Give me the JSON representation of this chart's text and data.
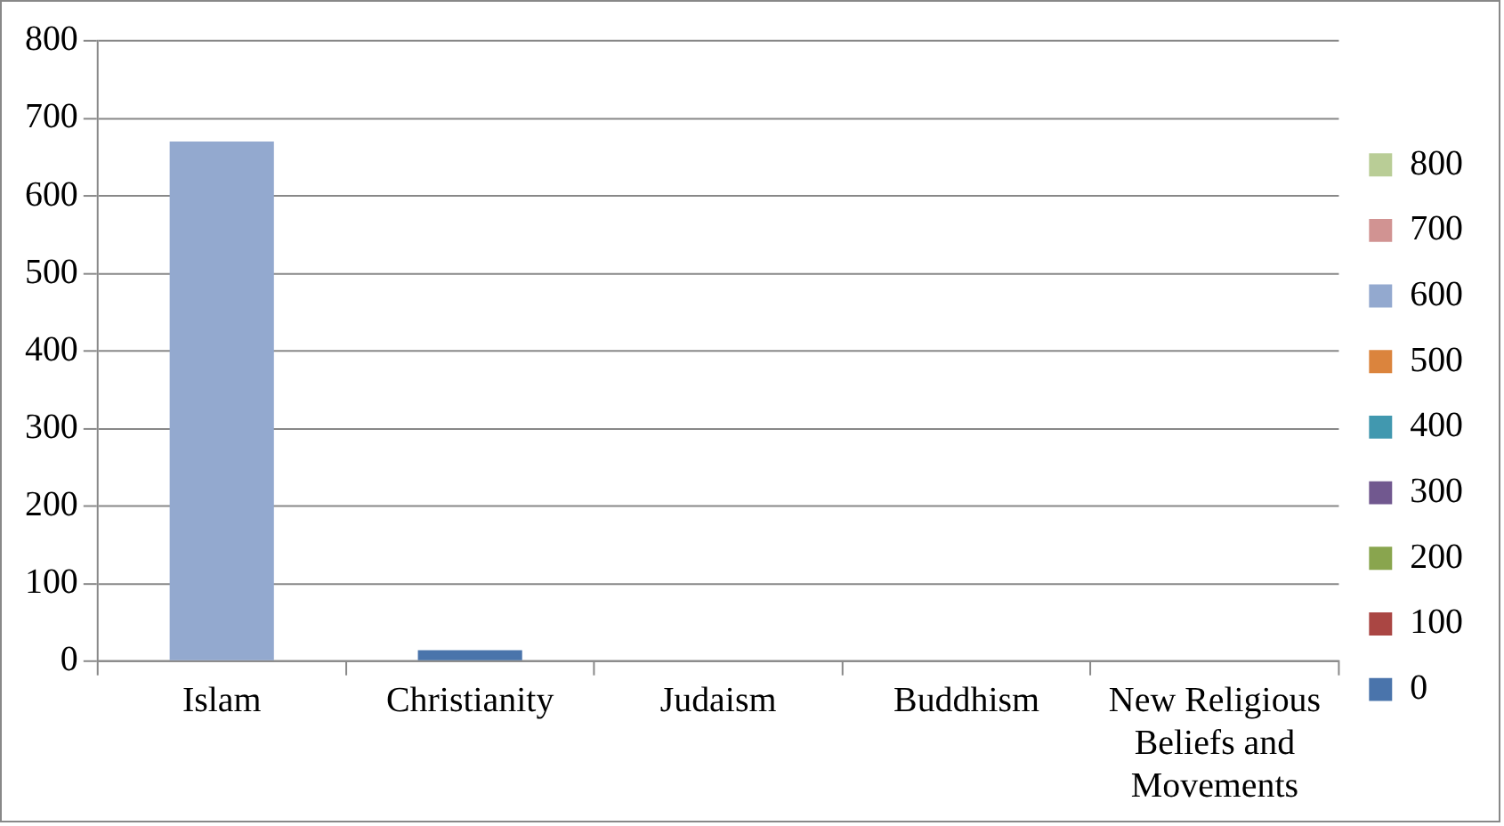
{
  "chart_data": {
    "type": "bar",
    "stacked": true,
    "categories": [
      "Islam",
      "Christianity",
      "Judaism",
      "Buddhism",
      "New Religious Beliefs and Movements"
    ],
    "series": [
      {
        "name": "0",
        "color": "#4a74ab",
        "values": [
          null,
          14,
          null,
          null,
          null
        ]
      },
      {
        "name": "100",
        "color": "#aa4643",
        "values": [
          null,
          null,
          null,
          null,
          null
        ]
      },
      {
        "name": "200",
        "color": "#89a54e",
        "values": [
          null,
          null,
          null,
          null,
          null
        ]
      },
      {
        "name": "300",
        "color": "#71588f",
        "values": [
          null,
          null,
          null,
          null,
          null
        ]
      },
      {
        "name": "400",
        "color": "#4198af",
        "values": [
          null,
          null,
          null,
          null,
          null
        ]
      },
      {
        "name": "500",
        "color": "#db843d",
        "values": [
          null,
          null,
          null,
          null,
          null
        ]
      },
      {
        "name": "600",
        "color": "#93a9cf",
        "values": [
          670,
          null,
          null,
          null,
          null
        ]
      },
      {
        "name": "700",
        "color": "#d19392",
        "values": [
          null,
          null,
          null,
          null,
          null
        ]
      },
      {
        "name": "800",
        "color": "#b9cd96",
        "values": [
          null,
          null,
          null,
          null,
          null
        ]
      }
    ],
    "ylim": [
      0,
      800
    ],
    "yticks": [
      0,
      100,
      200,
      300,
      400,
      500,
      600,
      700,
      800
    ],
    "grid": "y",
    "legend": "right"
  }
}
